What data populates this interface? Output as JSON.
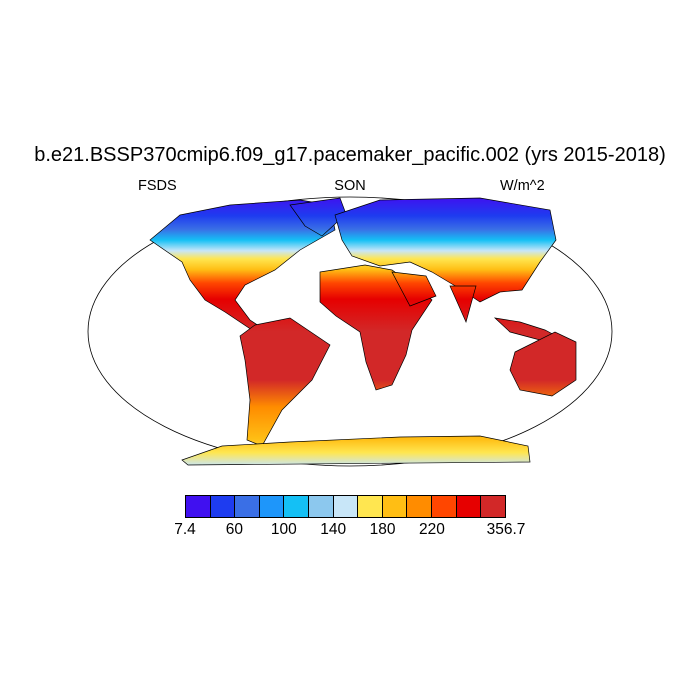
{
  "title": "b.e21.BSSP370cmip6.f09_g17.pacemaker_pacific.002 (yrs 2015-2018)",
  "left_label": "FSDS",
  "center_label": "SON",
  "right_label": "W/m^2",
  "map": {
    "projection": "robinson",
    "variable": "FSDS",
    "season": "SON"
  },
  "colorbar": {
    "colors": [
      "#4010F0",
      "#1E3CF0",
      "#3A6FE6",
      "#1E96FA",
      "#14C0F5",
      "#8CC8EE",
      "#C8E6F8",
      "#FFE650",
      "#FFBE14",
      "#FF8C00",
      "#FF4600",
      "#E60000",
      "#D22828"
    ],
    "labels": [
      {
        "text": "7.4",
        "boundary": 0
      },
      {
        "text": "60",
        "boundary": 2
      },
      {
        "text": "100",
        "boundary": 4
      },
      {
        "text": "140",
        "boundary": 6
      },
      {
        "text": "180",
        "boundary": 8
      },
      {
        "text": "220",
        "boundary": 10
      },
      {
        "text": "356.7",
        "boundary": 13
      }
    ]
  }
}
